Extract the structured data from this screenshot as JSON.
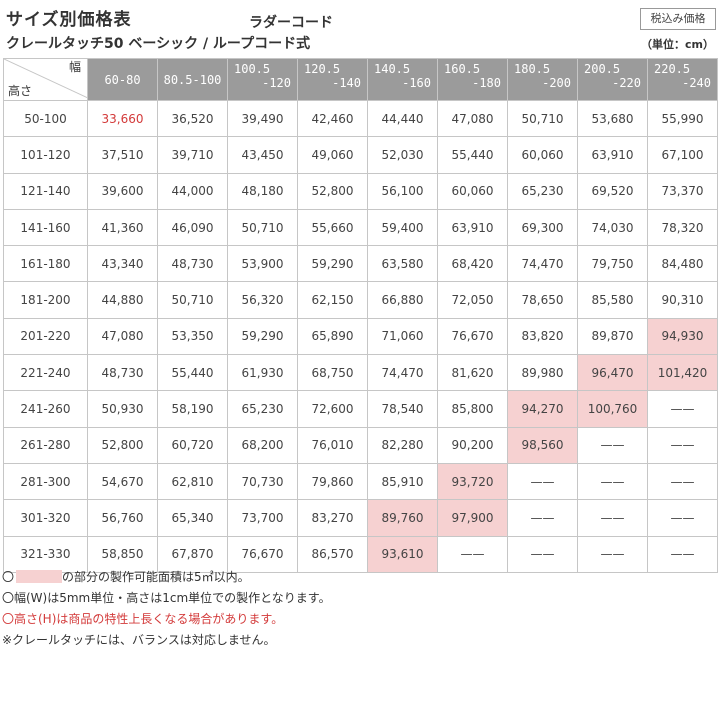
{
  "title": "サイズ別価格表",
  "subtitle": "クレールタッチ50 ベーシック / ループコード式",
  "cord_type": "ラダーコード",
  "tax_badge": "税込み価格",
  "unit_label": "（単位：cm）",
  "table": {
    "corner_width_label": "幅",
    "corner_height_label": "高さ",
    "width_columns": [
      [
        "60-80",
        ""
      ],
      [
        "80.5-100",
        ""
      ],
      [
        "100.5",
        "-120"
      ],
      [
        "120.5",
        "-140"
      ],
      [
        "140.5",
        "-160"
      ],
      [
        "160.5",
        "-180"
      ],
      [
        "180.5",
        "-200"
      ],
      [
        "200.5",
        "-220"
      ],
      [
        "220.5",
        "-240"
      ]
    ],
    "rows": [
      {
        "height": "50-100",
        "prices": [
          "33,660",
          "36,520",
          "39,490",
          "42,460",
          "44,440",
          "47,080",
          "50,710",
          "53,680",
          "55,990"
        ]
      },
      {
        "height": "101-120",
        "prices": [
          "37,510",
          "39,710",
          "43,450",
          "49,060",
          "52,030",
          "55,440",
          "60,060",
          "63,910",
          "67,100"
        ]
      },
      {
        "height": "121-140",
        "prices": [
          "39,600",
          "44,000",
          "48,180",
          "52,800",
          "56,100",
          "60,060",
          "65,230",
          "69,520",
          "73,370"
        ]
      },
      {
        "height": "141-160",
        "prices": [
          "41,360",
          "46,090",
          "50,710",
          "55,660",
          "59,400",
          "63,910",
          "69,300",
          "74,030",
          "78,320"
        ]
      },
      {
        "height": "161-180",
        "prices": [
          "43,340",
          "48,730",
          "53,900",
          "59,290",
          "63,580",
          "68,420",
          "74,470",
          "79,750",
          "84,480"
        ]
      },
      {
        "height": "181-200",
        "prices": [
          "44,880",
          "50,710",
          "56,320",
          "62,150",
          "66,880",
          "72,050",
          "78,650",
          "85,580",
          "90,310"
        ]
      },
      {
        "height": "201-220",
        "prices": [
          "47,080",
          "53,350",
          "59,290",
          "65,890",
          "71,060",
          "76,670",
          "83,820",
          "89,870",
          "94,930"
        ]
      },
      {
        "height": "221-240",
        "prices": [
          "48,730",
          "55,440",
          "61,930",
          "68,750",
          "74,470",
          "81,620",
          "89,980",
          "96,470",
          "101,420"
        ]
      },
      {
        "height": "241-260",
        "prices": [
          "50,930",
          "58,190",
          "65,230",
          "72,600",
          "78,540",
          "85,800",
          "94,270",
          "100,760",
          "——"
        ]
      },
      {
        "height": "261-280",
        "prices": [
          "52,800",
          "60,720",
          "68,200",
          "76,010",
          "82,280",
          "90,200",
          "98,560",
          "——",
          "——"
        ]
      },
      {
        "height": "281-300",
        "prices": [
          "54,670",
          "62,810",
          "70,730",
          "79,860",
          "85,910",
          "93,720",
          "——",
          "——",
          "——"
        ]
      },
      {
        "height": "301-320",
        "prices": [
          "56,760",
          "65,340",
          "73,700",
          "83,270",
          "89,760",
          "97,900",
          "——",
          "——",
          "——"
        ]
      },
      {
        "height": "321-330",
        "prices": [
          "58,850",
          "67,870",
          "76,670",
          "86,570",
          "93,610",
          "——",
          "——",
          "——",
          "——"
        ]
      }
    ],
    "highlight_cells": [
      [
        6,
        8
      ],
      [
        7,
        7
      ],
      [
        7,
        8
      ],
      [
        8,
        6
      ],
      [
        8,
        7
      ],
      [
        9,
        6
      ],
      [
        10,
        5
      ],
      [
        11,
        4
      ],
      [
        11,
        5
      ],
      [
        12,
        4
      ]
    ],
    "red_text_cells": [
      [
        0,
        0
      ]
    ],
    "highlight_color": "#f6d1d1",
    "header_color": "#9b9b9b"
  },
  "notes": {
    "n1_prefix": "〇",
    "n1_suffix": "の部分の製作可能面積は5㎡以内。",
    "n2": "〇幅(W)は5mm単位・高さは1cm単位での製作となります。",
    "n3": "〇高さ(H)は商品の特性上長くなる場合があります。",
    "n4": "※クレールタッチには、バランスは対応しません。"
  }
}
